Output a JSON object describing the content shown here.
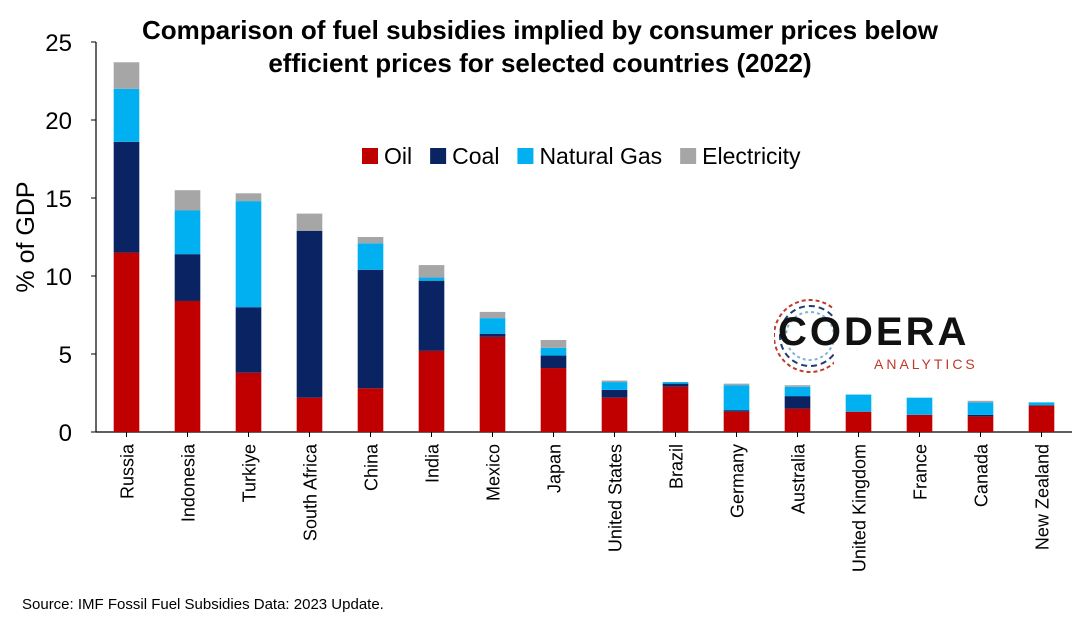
{
  "chart_data": {
    "type": "bar",
    "stacked": true,
    "title": "Comparison of fuel subsidies implied by consumer prices below efficient prices for selected countries (2022)",
    "ylabel": "% of GDP",
    "xlabel": "",
    "ylim": [
      0,
      25
    ],
    "yticks": [
      0,
      5,
      10,
      15,
      20,
      25
    ],
    "grid": false,
    "legend_position": "top-right",
    "categories": [
      "Russia",
      "Indonesia",
      "Turkiye",
      "South Africa",
      "China",
      "India",
      "Mexico",
      "Japan",
      "United States",
      "Brazil",
      "Germany",
      "Australia",
      "United Kingdom",
      "France",
      "Canada",
      "New Zealand"
    ],
    "series": [
      {
        "name": "Oil",
        "color": "#c00000",
        "values": [
          11.5,
          8.4,
          3.8,
          2.2,
          2.8,
          5.2,
          6.1,
          4.1,
          2.2,
          2.9,
          1.3,
          1.5,
          1.3,
          1.1,
          1.0,
          1.7
        ]
      },
      {
        "name": "Coal",
        "color": "#0a2463",
        "values": [
          7.1,
          3.0,
          4.2,
          10.7,
          7.6,
          4.5,
          0.2,
          0.8,
          0.5,
          0.2,
          0.1,
          0.8,
          0.0,
          0.0,
          0.1,
          0.0
        ]
      },
      {
        "name": "Natural Gas",
        "color": "#00b0f0",
        "values": [
          3.4,
          2.8,
          6.8,
          0.0,
          1.7,
          0.2,
          1.0,
          0.5,
          0.5,
          0.1,
          1.6,
          0.6,
          1.1,
          1.1,
          0.8,
          0.2
        ]
      },
      {
        "name": "Electricity",
        "color": "#a6a6a6",
        "values": [
          1.7,
          1.3,
          0.5,
          1.1,
          0.4,
          0.8,
          0.4,
          0.5,
          0.1,
          0.0,
          0.1,
          0.1,
          0.0,
          0.0,
          0.1,
          0.0
        ]
      }
    ]
  },
  "source": "Source: IMF Fossil Fuel Subsidies Data: 2023 Update.",
  "logo": {
    "word": "CODERA",
    "sub": "ANALYTICS"
  }
}
